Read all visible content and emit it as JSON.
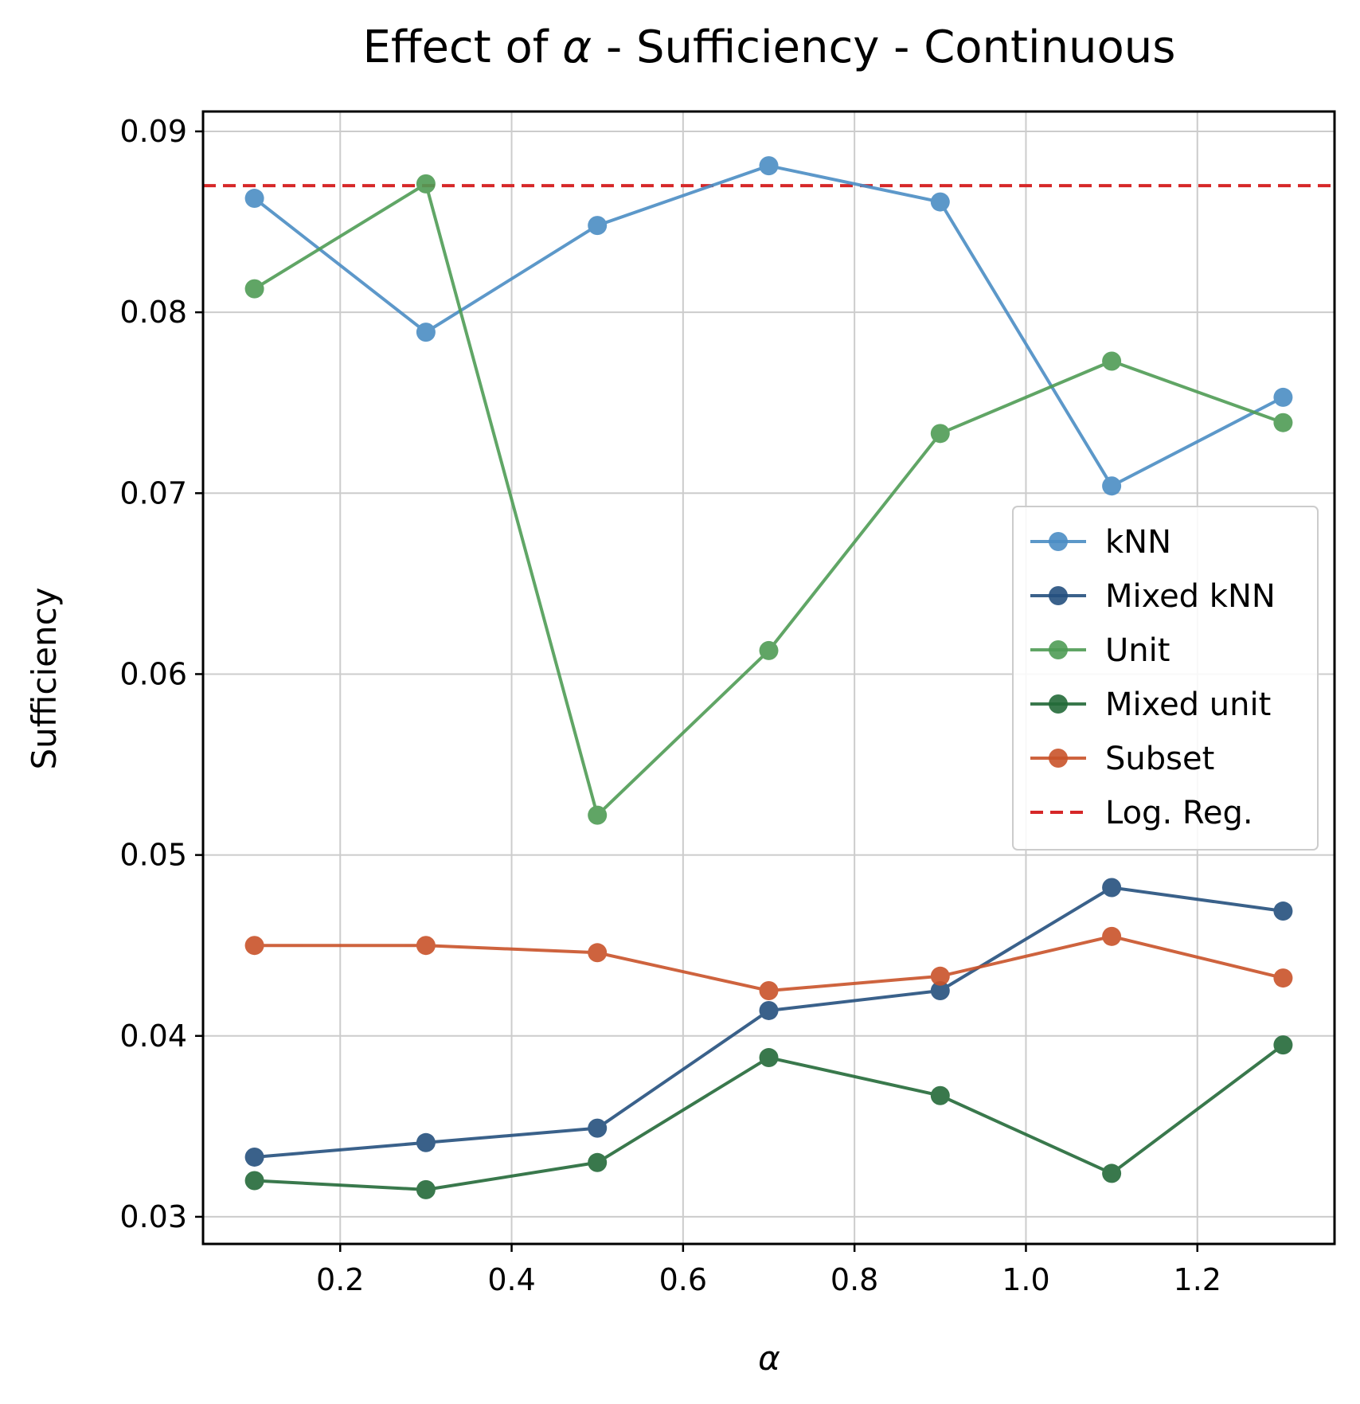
{
  "chart_data": {
    "type": "line",
    "title_prefix": "Effect of ",
    "title_symbol": "α",
    "title_suffix": " - Sufficiency - Continuous",
    "xlabel": "α",
    "ylabel": "Sufficiency",
    "xlim": [
      0.04,
      1.36
    ],
    "ylim": [
      0.0285,
      0.0911
    ],
    "xticks": [
      0.2,
      0.4,
      0.6,
      0.8,
      1.0,
      1.2
    ],
    "xtick_labels": [
      "0.2",
      "0.4",
      "0.6",
      "0.8",
      "1.0",
      "1.2"
    ],
    "yticks": [
      0.03,
      0.04,
      0.05,
      0.06,
      0.07,
      0.08,
      0.09
    ],
    "ytick_labels": [
      "0.03",
      "0.04",
      "0.05",
      "0.06",
      "0.07",
      "0.08",
      "0.09"
    ],
    "grid": true,
    "legend_position": "center-right",
    "x": [
      0.1,
      0.3,
      0.5,
      0.7,
      0.9,
      1.1,
      1.3
    ],
    "series": [
      {
        "name": "kNN",
        "color": "#4b8dc4",
        "values": [
          0.0863,
          0.0789,
          0.0848,
          0.0881,
          0.0861,
          0.0704,
          0.0753
        ]
      },
      {
        "name": "Mixed kNN",
        "color": "#25507e",
        "values": [
          0.0333,
          0.0341,
          0.0349,
          0.0414,
          0.0425,
          0.0482,
          0.0469
        ]
      },
      {
        "name": "Unit",
        "color": "#4f9c55",
        "values": [
          0.0813,
          0.0871,
          0.0522,
          0.0613,
          0.0733,
          0.0773,
          0.0739
        ]
      },
      {
        "name": "Mixed unit",
        "color": "#246a39",
        "values": [
          0.032,
          0.0315,
          0.033,
          0.0388,
          0.0367,
          0.0324,
          0.0395
        ]
      },
      {
        "name": "Subset",
        "color": "#c9532a",
        "values": [
          0.045,
          0.045,
          0.0446,
          0.0425,
          0.0433,
          0.0455,
          0.0432
        ]
      }
    ],
    "reference_line": {
      "name": "Log. Reg.",
      "color": "#d62728",
      "value": 0.087,
      "style": "dashed"
    }
  }
}
